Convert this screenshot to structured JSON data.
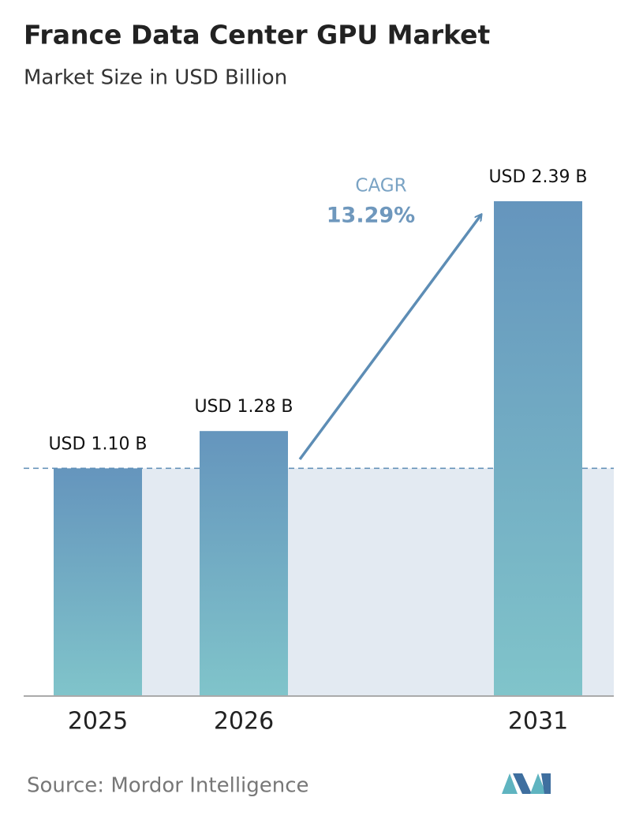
{
  "chart_data": {
    "type": "bar",
    "title": "France Data Center GPU Market",
    "subtitle": "Market Size in USD Billion",
    "categories": [
      "2025",
      "2026",
      "2031"
    ],
    "values": [
      1.1,
      1.28,
      2.39
    ],
    "value_labels": [
      "USD 1.10 B",
      "USD 1.28 B",
      "USD 2.39 B"
    ],
    "color_top": "#6595bd",
    "color_bottom": "#80c4ca",
    "annotations": {
      "cagr_label": "CAGR",
      "cagr_value": "13.29%"
    },
    "source": "Source: Mordor Intelligence"
  }
}
